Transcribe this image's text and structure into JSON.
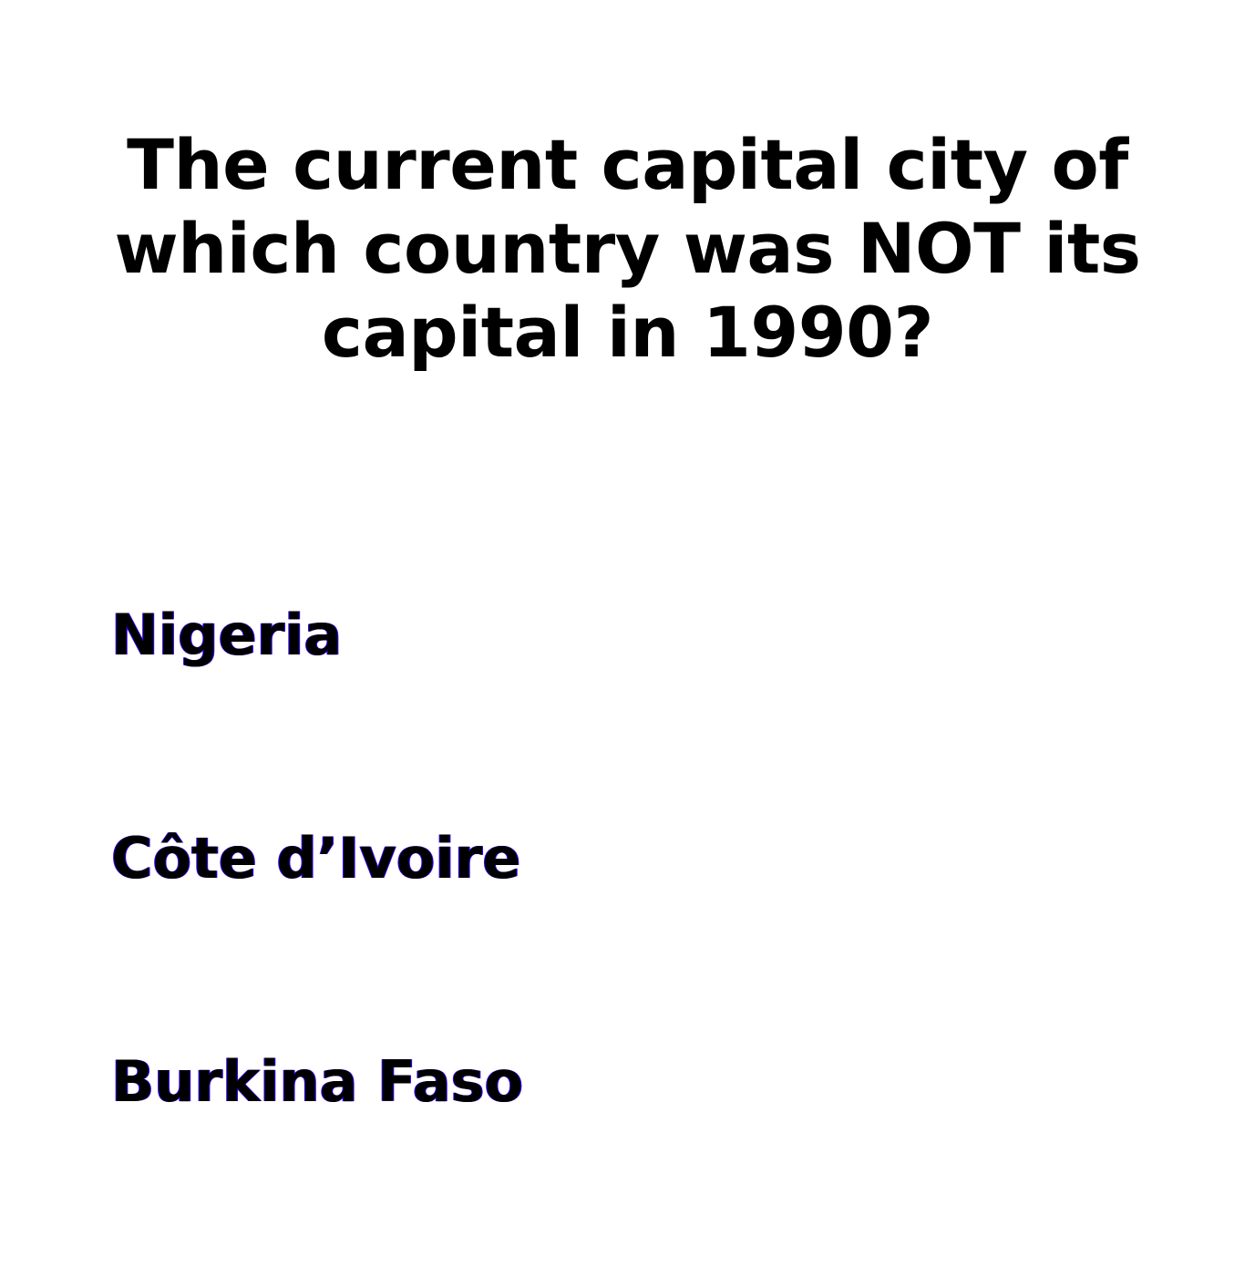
{
  "question": {
    "line1": "The current capital city of",
    "line2": "which country was NOT its",
    "line3": "capital in 1990?"
  },
  "answers": [
    {
      "label": "Nigeria"
    },
    {
      "label": "Côte d’Ivoire"
    },
    {
      "label": "Burkina Faso"
    }
  ],
  "colors": {
    "background": "#ffffff",
    "text": "#000000",
    "answer_fringe": "#3a00ff"
  }
}
